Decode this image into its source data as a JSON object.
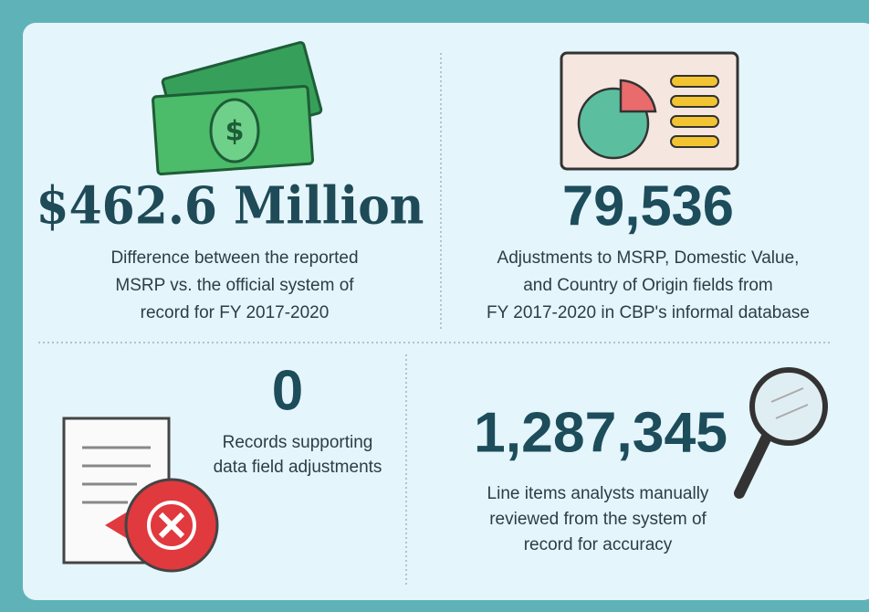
{
  "stats": [
    {
      "value": "$462.6 Million",
      "description": [
        "Difference between the reported",
        "MSRP vs. the official system of",
        "record for FY 2017-2020"
      ]
    },
    {
      "value": "79,536",
      "description": [
        "Adjustments to MSRP, Domestic Value,",
        "and Country of Origin fields from",
        "FY 2017-2020 in CBP's informal database"
      ]
    },
    {
      "value": "0",
      "description": [
        "Records supporting",
        "data field adjustments"
      ]
    },
    {
      "value": "1,287,345",
      "description": [
        "Line items analysts manually",
        "reviewed from the system of",
        "record for accuracy"
      ]
    }
  ]
}
